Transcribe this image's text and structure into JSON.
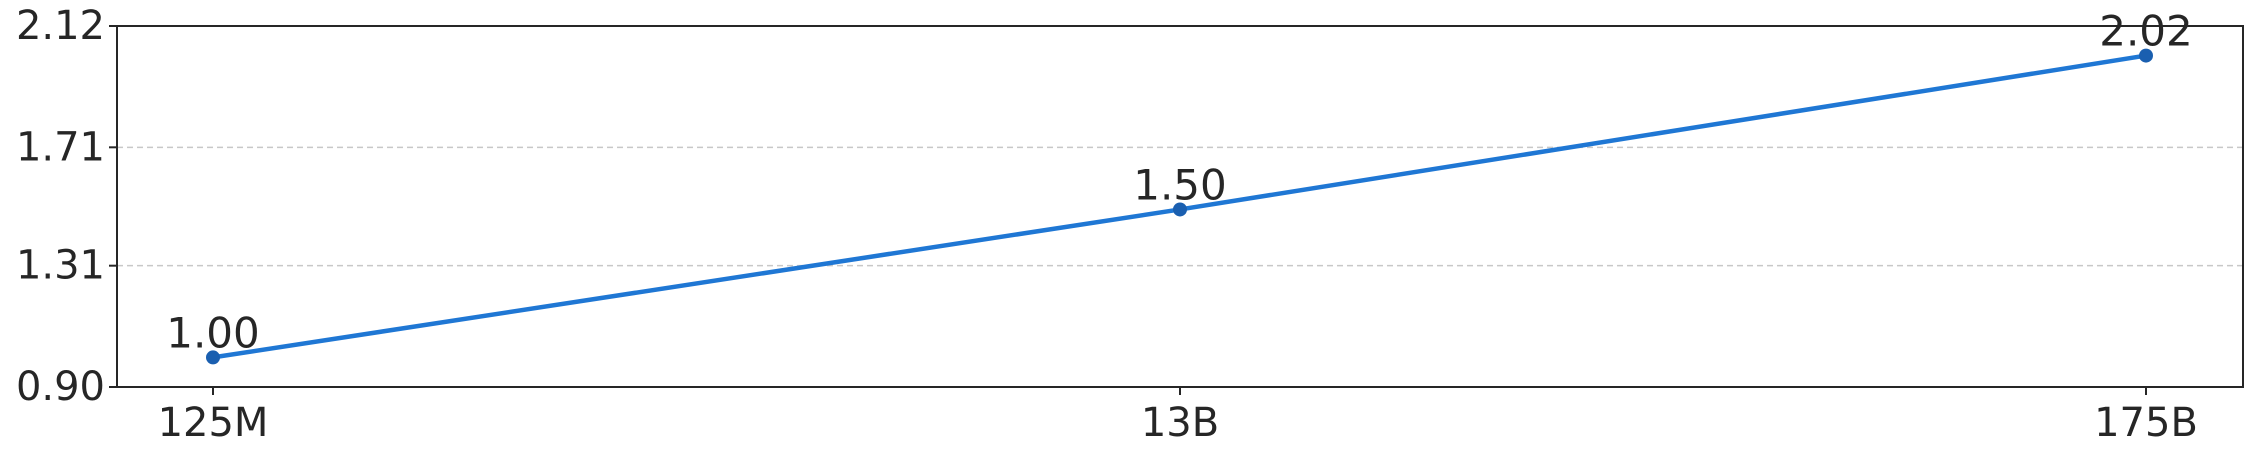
{
  "chart_data": {
    "type": "line",
    "categories": [
      "125M",
      "13B",
      "175B"
    ],
    "series": [
      {
        "values": [
          1.0,
          1.5,
          2.02
        ],
        "color": "#1f77d4"
      }
    ],
    "data_labels": [
      "1.00",
      "1.50",
      "2.02"
    ],
    "ylim": [
      0.9,
      2.12
    ],
    "yticks": [
      "0.90",
      "1.31",
      "1.71",
      "2.12"
    ],
    "grid": "horizontal dashed",
    "title": "",
    "xlabel": "",
    "ylabel": ""
  }
}
